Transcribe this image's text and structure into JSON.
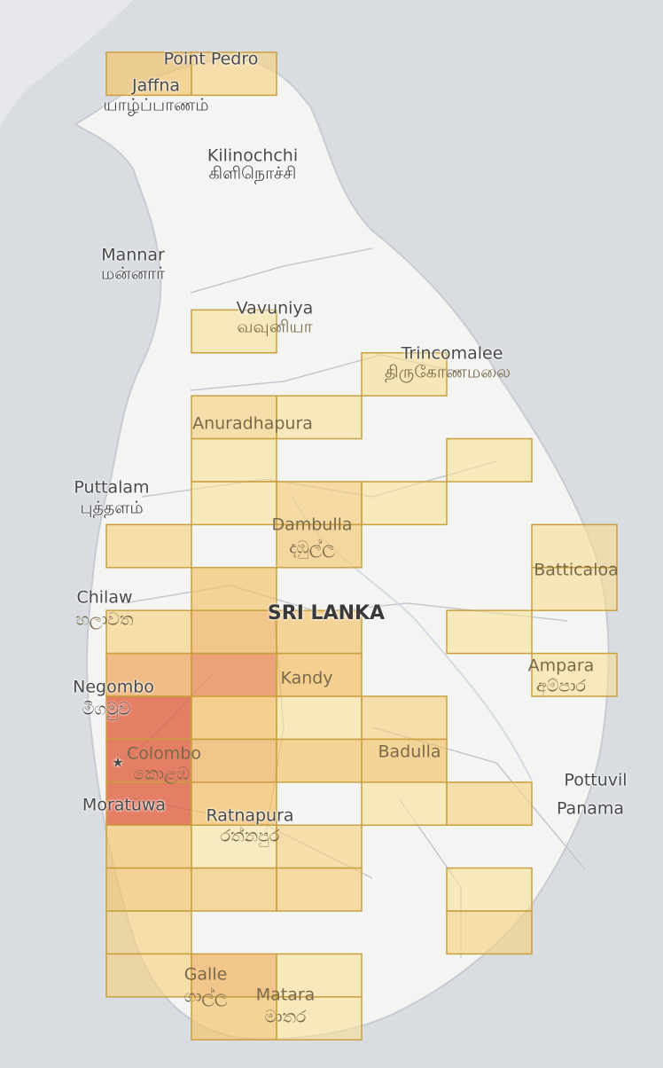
{
  "country_label": "SRI LANKA",
  "capital": {
    "name": "Colombo",
    "native": "කොළඹ"
  },
  "places": [
    {
      "name": "Point Pedro",
      "native": ""
    },
    {
      "name": "Jaffna",
      "native": "யாழ்ப்பாணம்"
    },
    {
      "name": "Kilinochchi",
      "native": "கிளிநொச்சி"
    },
    {
      "name": "Mannar",
      "native": "மன்னார்"
    },
    {
      "name": "Vavuniya",
      "native": "வவுனியா"
    },
    {
      "name": "Trincomalee",
      "native": "திருகோணமலை"
    },
    {
      "name": "Anuradhapura",
      "native": ""
    },
    {
      "name": "Puttalam",
      "native": "புத்தளம்"
    },
    {
      "name": "Dambulla",
      "native": "දඹුල්ල"
    },
    {
      "name": "Batticaloa",
      "native": ""
    },
    {
      "name": "Chilaw",
      "native": "හලාවත"
    },
    {
      "name": "Negombo",
      "native": "මීගමුව"
    },
    {
      "name": "Kandy",
      "native": ""
    },
    {
      "name": "Ampara",
      "native": "අම්පාර"
    },
    {
      "name": "Badulla",
      "native": ""
    },
    {
      "name": "Moratuwa",
      "native": ""
    },
    {
      "name": "Pottuvil",
      "native": ""
    },
    {
      "name": "Panama",
      "native": ""
    },
    {
      "name": "Ratnapura",
      "native": "රත්නපුර"
    },
    {
      "name": "Galle",
      "native": "ගාල්ල"
    },
    {
      "name": "Matara",
      "native": "මාතර"
    }
  ],
  "grid": {
    "cols": 6,
    "rows": 23,
    "levels": [
      {
        "c": 0,
        "r": 0,
        "v": 0.45
      },
      {
        "c": 1,
        "r": 0,
        "v": 0.3
      },
      {
        "c": 1,
        "r": 6,
        "v": 0.15
      },
      {
        "c": 3,
        "r": 7,
        "v": 0.2
      },
      {
        "c": 1,
        "r": 8,
        "v": 0.3
      },
      {
        "c": 2,
        "r": 8,
        "v": 0.15
      },
      {
        "c": 1,
        "r": 9,
        "v": 0.15
      },
      {
        "c": 4,
        "r": 9,
        "v": 0.15
      },
      {
        "c": 1,
        "r": 10,
        "v": 0.15
      },
      {
        "c": 2,
        "r": 10,
        "v": 0.35
      },
      {
        "c": 3,
        "r": 10,
        "v": 0.15
      },
      {
        "c": 0,
        "r": 11,
        "v": 0.3
      },
      {
        "c": 2,
        "r": 11,
        "v": 0.4
      },
      {
        "c": 5,
        "r": 11,
        "v": 0.2
      },
      {
        "c": 1,
        "r": 12,
        "v": 0.45
      },
      {
        "c": 5,
        "r": 12,
        "v": 0.2
      },
      {
        "c": 0,
        "r": 13,
        "v": 0.3
      },
      {
        "c": 1,
        "r": 13,
        "v": 0.55
      },
      {
        "c": 2,
        "r": 13,
        "v": 0.45
      },
      {
        "c": 4,
        "r": 13,
        "v": 0.15
      },
      {
        "c": 0,
        "r": 14,
        "v": 0.6
      },
      {
        "c": 1,
        "r": 14,
        "v": 0.72
      },
      {
        "c": 2,
        "r": 14,
        "v": 0.5
      },
      {
        "c": 5,
        "r": 14,
        "v": 0.15
      },
      {
        "c": 0,
        "r": 15,
        "v": 0.88
      },
      {
        "c": 1,
        "r": 15,
        "v": 0.5
      },
      {
        "c": 2,
        "r": 15,
        "v": 0.15
      },
      {
        "c": 3,
        "r": 15,
        "v": 0.3
      },
      {
        "c": 0,
        "r": 16,
        "v": 0.88
      },
      {
        "c": 1,
        "r": 16,
        "v": 0.55
      },
      {
        "c": 2,
        "r": 16,
        "v": 0.45
      },
      {
        "c": 3,
        "r": 16,
        "v": 0.45
      },
      {
        "c": 0,
        "r": 17,
        "v": 0.88
      },
      {
        "c": 1,
        "r": 17,
        "v": 0.5
      },
      {
        "c": 3,
        "r": 17,
        "v": 0.15
      },
      {
        "c": 4,
        "r": 17,
        "v": 0.3
      },
      {
        "c": 0,
        "r": 18,
        "v": 0.45
      },
      {
        "c": 1,
        "r": 18,
        "v": 0.12
      },
      {
        "c": 2,
        "r": 18,
        "v": 0.3
      },
      {
        "c": 0,
        "r": 19,
        "v": 0.45
      },
      {
        "c": 1,
        "r": 19,
        "v": 0.4
      },
      {
        "c": 2,
        "r": 19,
        "v": 0.35
      },
      {
        "c": 4,
        "r": 19,
        "v": 0.15
      },
      {
        "c": 0,
        "r": 20,
        "v": 0.3
      },
      {
        "c": 4,
        "r": 20,
        "v": 0.3
      },
      {
        "c": 0,
        "r": 21,
        "v": 0.3
      },
      {
        "c": 1,
        "r": 21,
        "v": 0.55
      },
      {
        "c": 2,
        "r": 21,
        "v": 0.15
      },
      {
        "c": 1,
        "r": 22,
        "v": 0.45
      },
      {
        "c": 2,
        "r": 22,
        "v": 0.15
      }
    ]
  },
  "colors": {
    "sea": "#d9dde2",
    "land": "#f4f4f2",
    "outer_land": "#e6e8eb",
    "cell_low": "#fdf0b0",
    "cell_mid": "#f3bd60",
    "cell_high": "#d93b2e",
    "cell_stroke": "#c9a040"
  }
}
